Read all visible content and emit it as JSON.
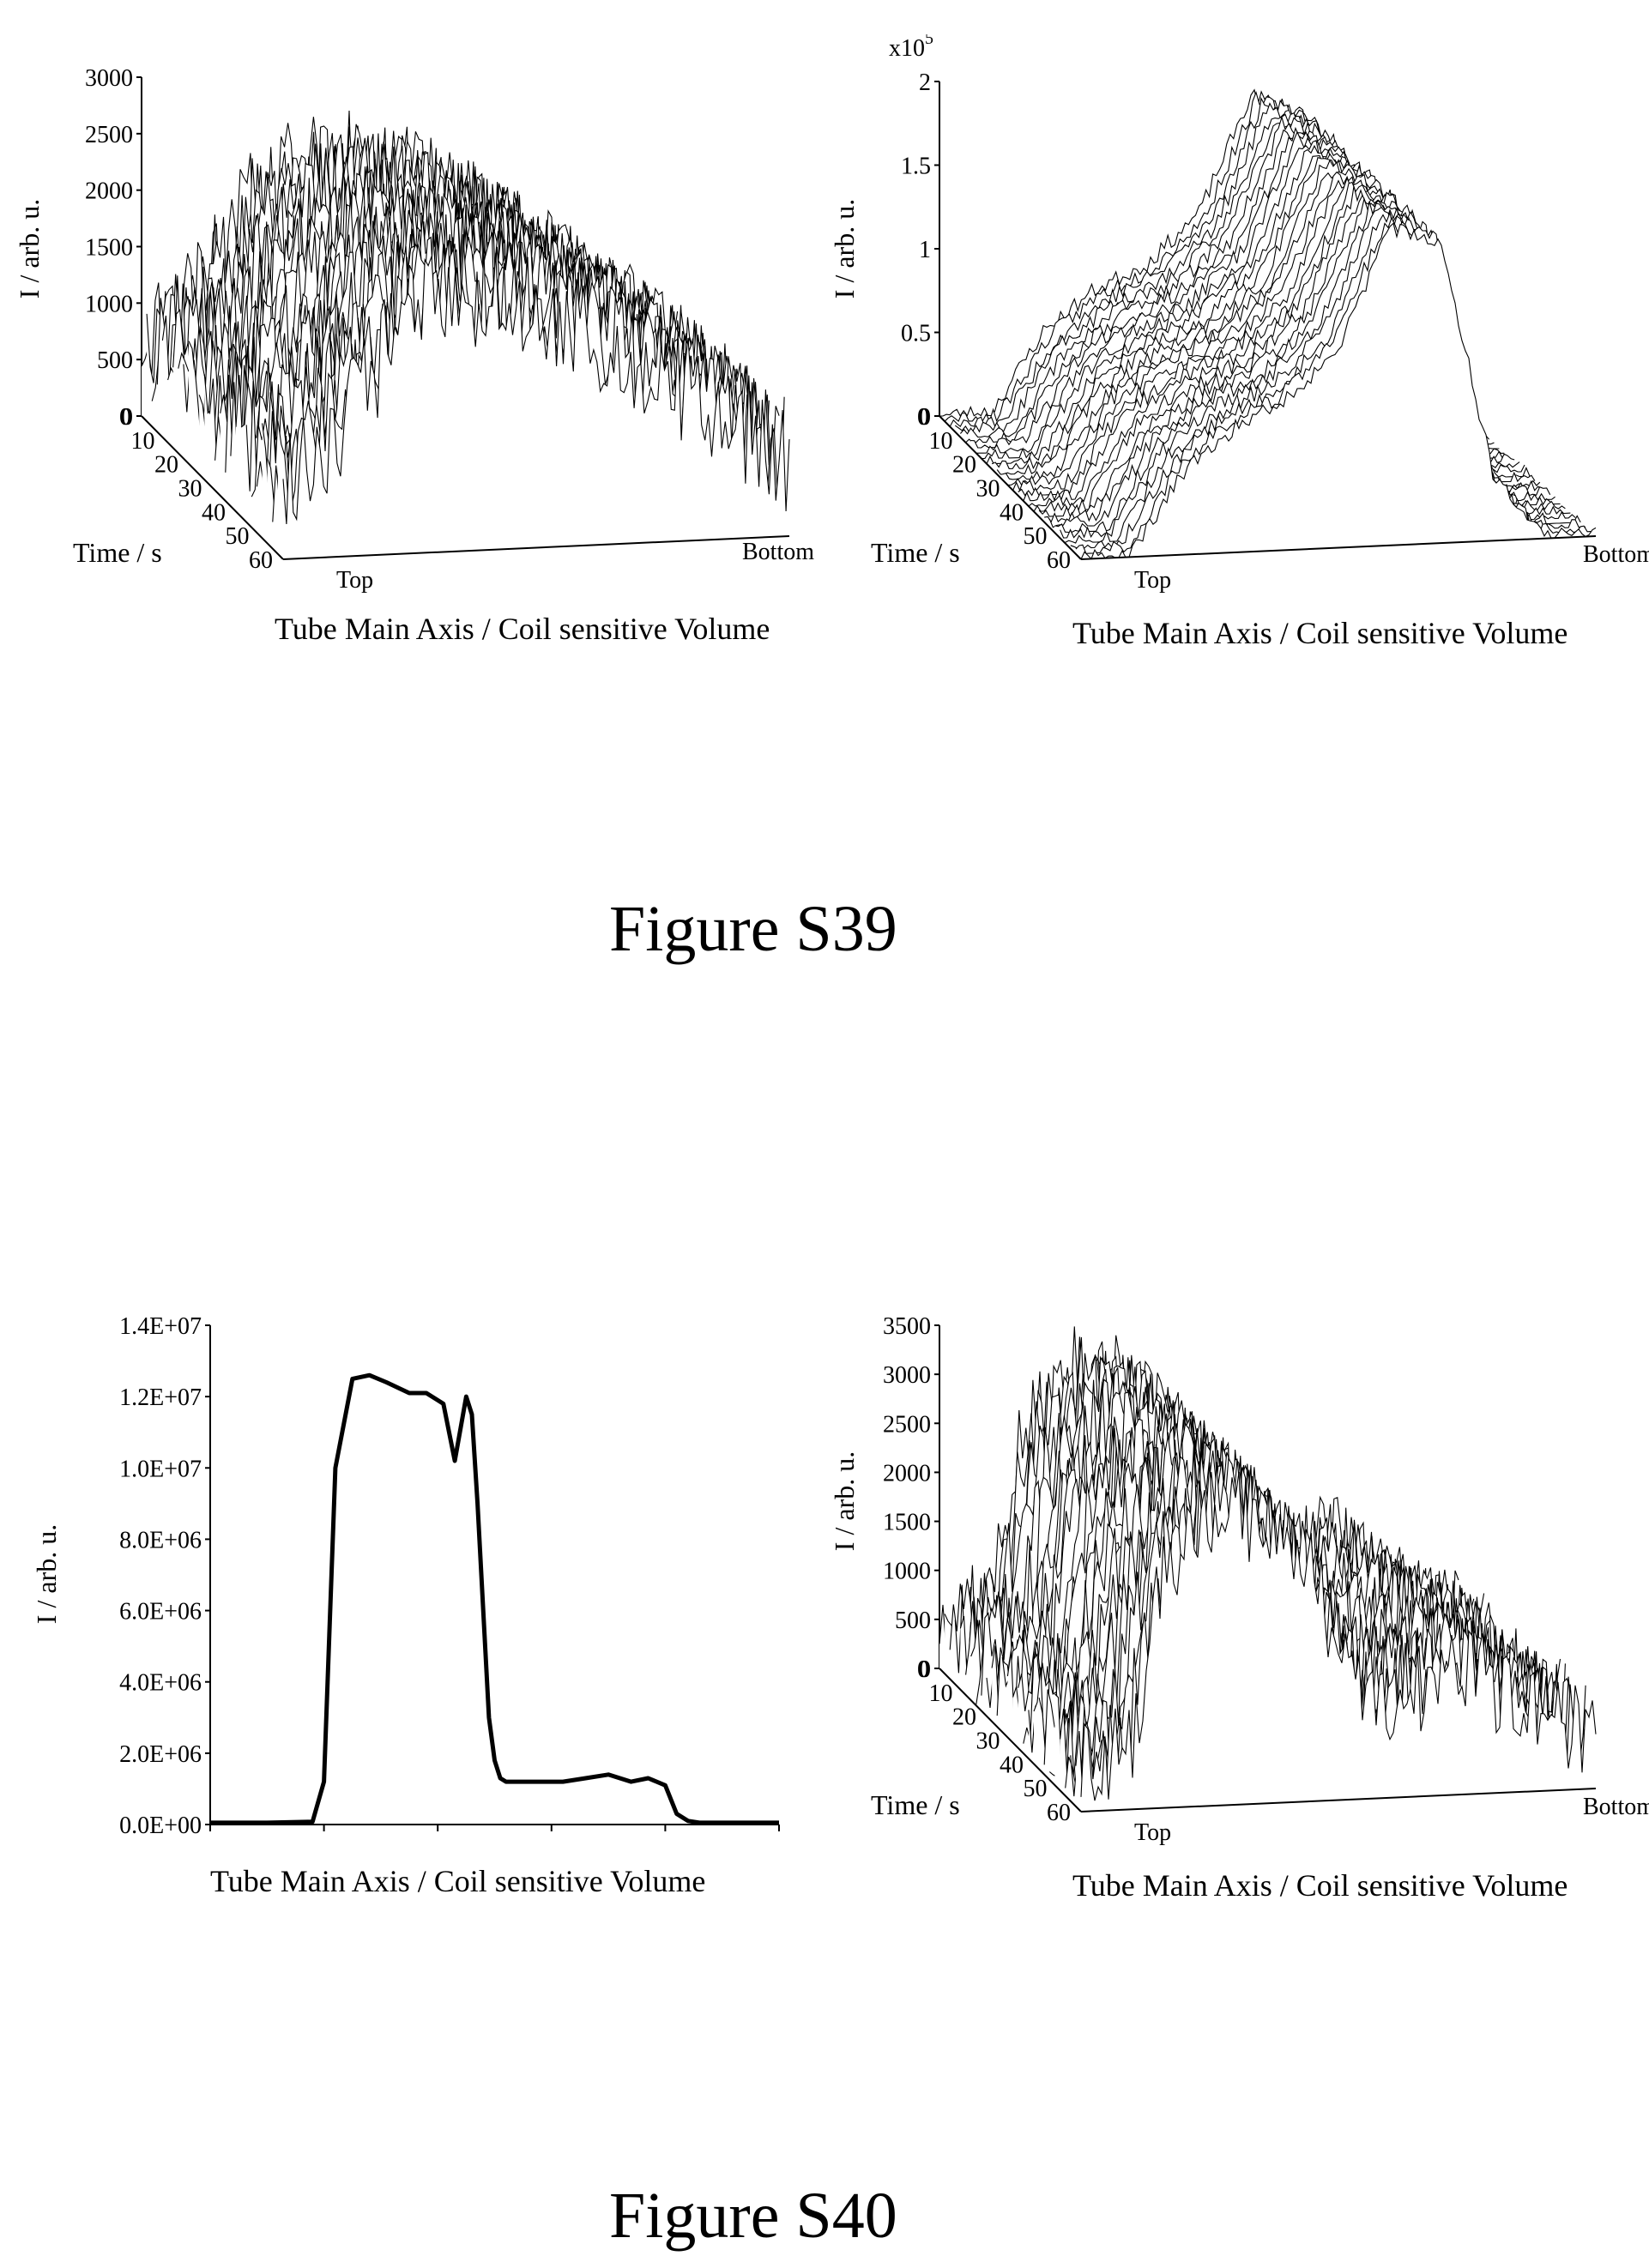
{
  "figures": [
    {
      "label": "Figure S39"
    },
    {
      "label": "Figure S40"
    }
  ],
  "chart_data": [
    {
      "id": "s39-left",
      "type": "surface3d",
      "zlabel": "I / arb. u.",
      "ylabel": "Time / s",
      "xlabel": "Tube Main Axis / Coil sensitive Volume",
      "x_ends": [
        "Top",
        "Bottom"
      ],
      "zticks": [
        "0",
        "500",
        "1000",
        "1500",
        "2000",
        "2500",
        "3000"
      ],
      "zlim": [
        0,
        3000
      ],
      "yticks": [
        "0",
        "10",
        "20",
        "30",
        "40",
        "50",
        "60"
      ],
      "ylim": [
        0,
        60
      ],
      "profile_position": [
        0,
        0.1,
        0.2,
        0.3,
        0.4,
        0.5,
        0.6,
        0.7,
        0.8,
        0.9,
        1.0
      ],
      "profile_intensity": [
        700,
        1100,
        1800,
        2200,
        2200,
        2100,
        1900,
        1600,
        1300,
        1000,
        700
      ],
      "noise": 500,
      "seed": 11
    },
    {
      "id": "s39-right",
      "type": "surface3d",
      "zlabel": "I / arb. u.",
      "zmultiplier": "x10",
      "zexponent": "5",
      "ylabel": "Time / s",
      "xlabel": "Tube Main Axis / Coil sensitive Volume",
      "x_ends": [
        "Top",
        "Bottom"
      ],
      "zticks": [
        "0",
        "0.5",
        "1",
        "1.5",
        "2"
      ],
      "zlim": [
        0,
        2
      ],
      "yticks": [
        "0",
        "10",
        "20",
        "30",
        "40",
        "50",
        "60"
      ],
      "ylim": [
        0,
        60
      ],
      "profile_position": [
        0,
        0.1,
        0.2,
        0.3,
        0.4,
        0.5,
        0.6,
        0.7,
        0.8,
        0.9,
        1.0
      ],
      "profile_intensity": [
        0,
        0.02,
        0.5,
        0.75,
        0.9,
        1.2,
        1.9,
        1.8,
        0.4,
        0.02,
        0
      ],
      "noise": 0.05,
      "seed": 23
    },
    {
      "id": "s40-left",
      "type": "line",
      "ylabel": "I / arb. u.",
      "xlabel": "Tube Main Axis / Coil sensitive Volume",
      "yticks": [
        "0.0E+00",
        "2.0E+06",
        "4.0E+06",
        "6.0E+06",
        "8.0E+06",
        "1.0E+07",
        "1.2E+07",
        "1.4E+07"
      ],
      "ylim": [
        0,
        14000000
      ],
      "xlim": [
        0,
        1
      ],
      "series": [
        {
          "x": [
            0,
            0.1,
            0.18,
            0.2,
            0.22,
            0.25,
            0.28,
            0.31,
            0.35,
            0.38,
            0.41,
            0.43,
            0.45,
            0.46,
            0.47,
            0.49,
            0.5,
            0.51,
            0.52,
            0.53,
            0.55,
            0.58,
            0.62,
            0.66,
            0.7,
            0.74,
            0.77,
            0.8,
            0.82,
            0.84,
            0.86,
            0.9,
            1.0
          ],
          "y": [
            50000,
            50000,
            80000,
            1200000,
            10000000,
            12500000,
            12600000,
            12400000,
            12100000,
            12100000,
            11800000,
            10200000,
            12000000,
            11500000,
            9000000,
            3000000,
            1800000,
            1300000,
            1200000,
            1200000,
            1200000,
            1200000,
            1200000,
            1300000,
            1400000,
            1200000,
            1300000,
            1100000,
            300000,
            100000,
            50000,
            50000,
            50000
          ]
        }
      ]
    },
    {
      "id": "s40-right",
      "type": "surface3d",
      "zlabel": "I / arb. u.",
      "ylabel": "Time / s",
      "xlabel": "Tube Main Axis / Coil sensitive Volume",
      "x_ends": [
        "Top",
        "Bottom"
      ],
      "zticks": [
        "0",
        "500",
        "1000",
        "1500",
        "2000",
        "2500",
        "3000",
        "3500"
      ],
      "zlim": [
        0,
        3500
      ],
      "yticks": [
        "0",
        "10",
        "20",
        "30",
        "40",
        "50",
        "60"
      ],
      "ylim": [
        0,
        60
      ],
      "profile_position": [
        0,
        0.1,
        0.15,
        0.25,
        0.35,
        0.45,
        0.55,
        0.65,
        0.75,
        0.85,
        1.0
      ],
      "profile_intensity": [
        500,
        700,
        2200,
        3000,
        2900,
        2300,
        900,
        1100,
        1300,
        800,
        500
      ],
      "noise": 500,
      "seed": 37
    }
  ]
}
